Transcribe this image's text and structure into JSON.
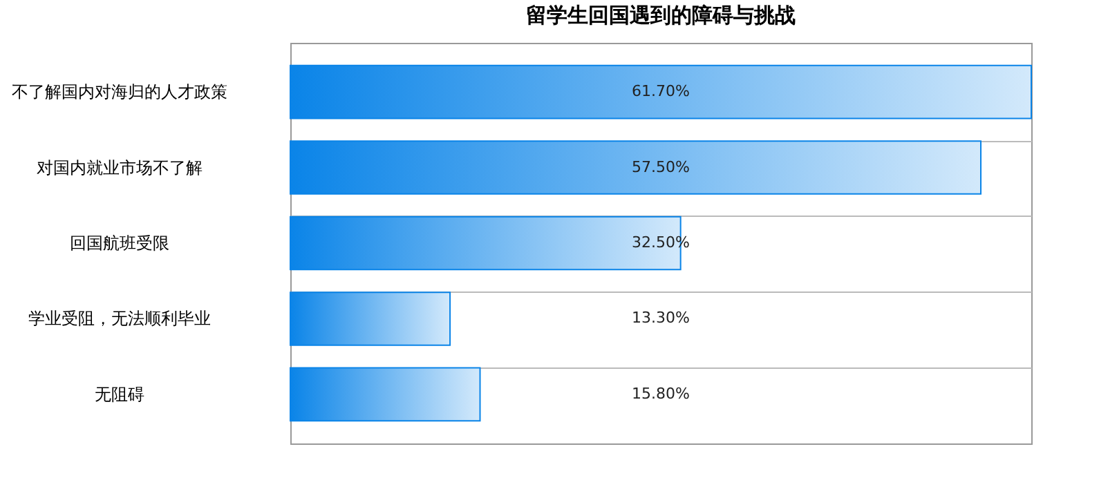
{
  "chart_data": {
    "type": "bar",
    "orientation": "horizontal",
    "title": "留学生回国遇到的障碍与挑战",
    "categories": [
      "不了解国内对海归的人才政策",
      "对国内就业市场不了解",
      "回国航班受限",
      "学业受阻，无法顺利毕业",
      "无阻碍"
    ],
    "values": [
      61.7,
      57.5,
      32.5,
      13.3,
      15.8
    ],
    "value_labels": [
      "61.70%",
      "57.50%",
      "32.50%",
      "13.30%",
      "15.80%"
    ],
    "color": "#0a84e8",
    "grid": true
  }
}
